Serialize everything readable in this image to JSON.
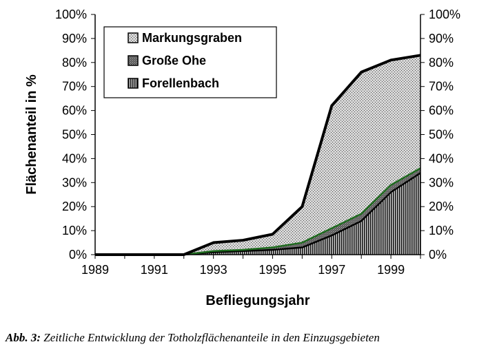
{
  "chart_data": {
    "type": "area",
    "stacked": true,
    "x": [
      1989,
      1990,
      1991,
      1992,
      1993,
      1994,
      1995,
      1996,
      1997,
      1998,
      1999,
      2000
    ],
    "series": [
      {
        "name": "Forellenbach",
        "values": [
          0,
          0,
          0,
          0,
          1,
          1.5,
          2,
          3,
          8,
          14,
          26,
          34
        ],
        "pattern": "vertical-lines"
      },
      {
        "name": "Große Ohe",
        "values": [
          0,
          0,
          0,
          0,
          0.5,
          0.5,
          1,
          2,
          3,
          3,
          3,
          2
        ],
        "pattern": "dense-dark"
      },
      {
        "name": "Markungsgraben",
        "values": [
          0,
          0,
          0,
          0,
          3.5,
          4,
          5.5,
          15,
          51,
          59,
          52,
          47
        ],
        "pattern": "light-dots"
      }
    ],
    "xlabel": "Befliegungsjahr",
    "ylabel": "Flächenanteil in %",
    "ylim": [
      0,
      100
    ],
    "yticks": [
      "0%",
      "10%",
      "20%",
      "30%",
      "40%",
      "50%",
      "60%",
      "70%",
      "80%",
      "90%",
      "100%"
    ],
    "xticks": [
      "1989",
      "1991",
      "1993",
      "1995",
      "1997",
      "1999"
    ],
    "legend_position": "top-left",
    "grid": false,
    "right_axis": true
  },
  "caption": {
    "label": "Abb. 3",
    "separator": ":",
    "text": "Zeitliche Entwicklung der Totholzflächenanteile in den Einzugsgebieten"
  },
  "colors": {
    "outline": "#000000",
    "boundary_green": "#1e6b1e"
  }
}
